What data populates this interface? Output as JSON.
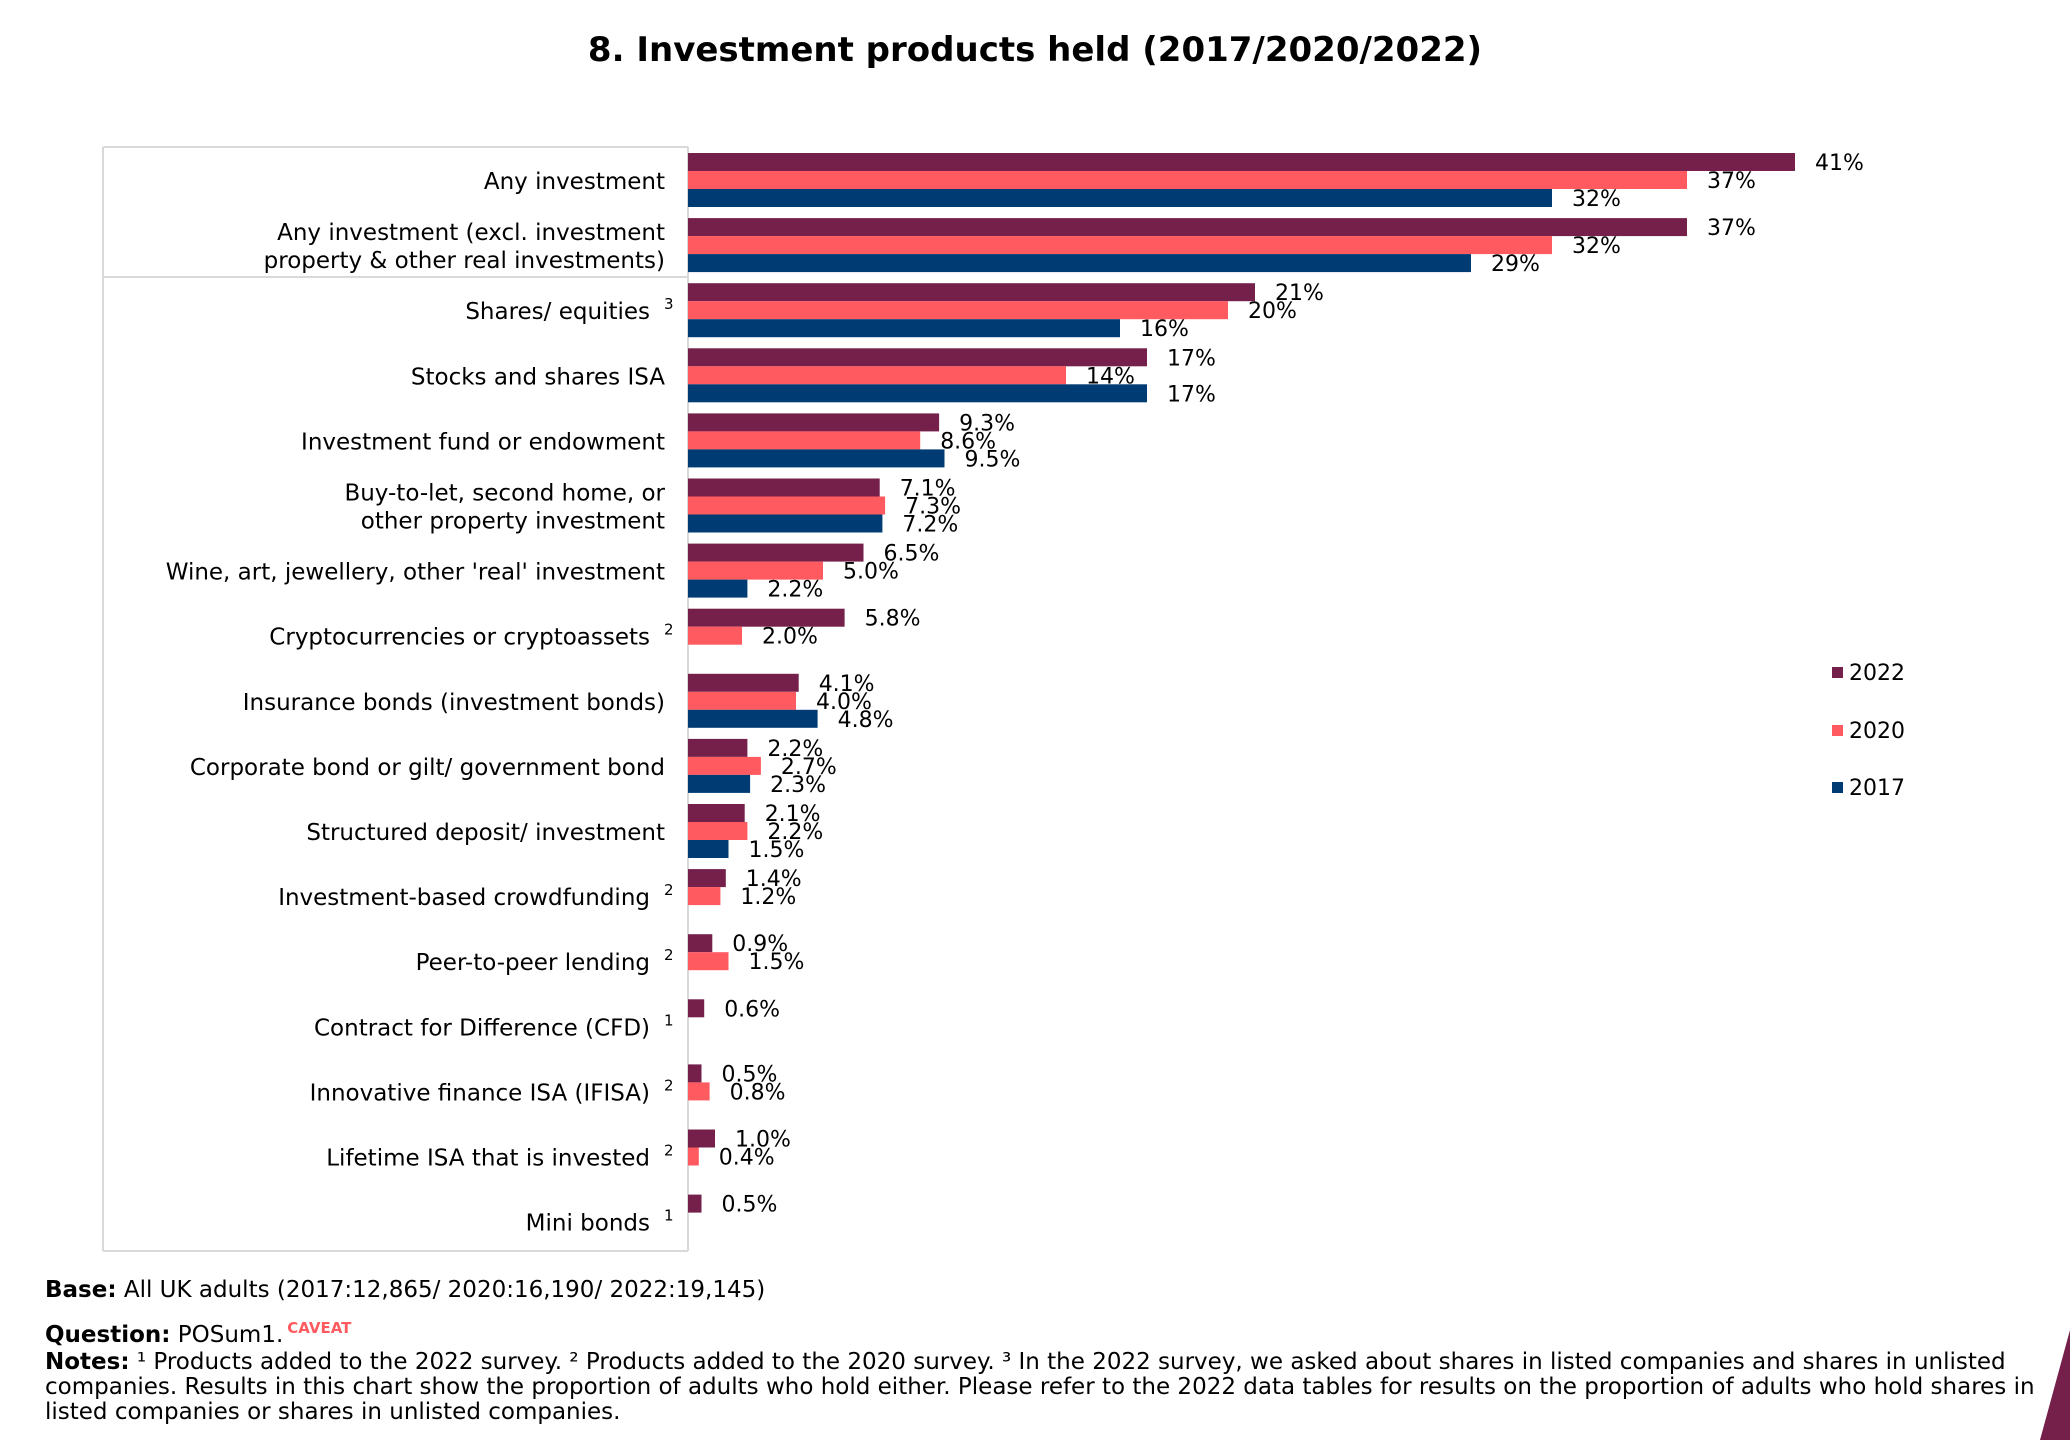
{
  "chart_data": {
    "type": "bar",
    "orientation": "horizontal",
    "title": "8. Investment products held (2017/2020/2022)",
    "categories": [
      "Any investment",
      "Any investment (excl. investment property & other real investments)",
      "Shares/ equities",
      "Stocks and shares ISA",
      "Investment fund or endowment",
      "Buy-to-let, second home, or other property investment",
      "Wine, art, jewellery, other 'real' investment",
      "Cryptocurrencies or cryptoassets",
      "Insurance bonds (investment bonds)",
      "Corporate bond or gilt/ government bond",
      "Structured deposit/ investment",
      "Investment-based crowdfunding",
      "Peer-to-peer lending",
      "Contract for Difference (CFD)",
      "Innovative finance ISA (IFISA)",
      "Lifetime ISA that is invested",
      "Mini bonds"
    ],
    "category_lines": [
      [
        "Any investment"
      ],
      [
        "Any investment (excl. investment",
        "property & other real investments)"
      ],
      [
        "Shares/ equities"
      ],
      [
        "Stocks and shares ISA"
      ],
      [
        "Investment fund or endowment"
      ],
      [
        "Buy-to-let, second home, or",
        "other property investment"
      ],
      [
        "Wine, art, jewellery, other 'real' investment"
      ],
      [
        "Cryptocurrencies or cryptoassets"
      ],
      [
        "Insurance bonds (investment bonds)"
      ],
      [
        "Corporate bond or gilt/ government bond"
      ],
      [
        "Structured deposit/ investment"
      ],
      [
        "Investment-based crowdfunding"
      ],
      [
        "Peer-to-peer lending"
      ],
      [
        "Contract for Difference (CFD)"
      ],
      [
        "Innovative finance ISA (IFISA)"
      ],
      [
        "Lifetime ISA that is invested"
      ],
      [
        "Mini bonds"
      ]
    ],
    "superscripts": [
      "",
      "",
      "3",
      "",
      "",
      "",
      "",
      "2",
      "",
      "",
      "",
      "2",
      "2",
      "1",
      "2",
      "2",
      "1"
    ],
    "series": [
      {
        "name": "2022",
        "color": "#74204a",
        "values": [
          41,
          37,
          21,
          17,
          9.3,
          7.1,
          6.5,
          5.8,
          4.1,
          2.2,
          2.1,
          1.4,
          0.9,
          0.6,
          0.5,
          1.0,
          0.5
        ],
        "labels": [
          "41%",
          "37%",
          "21%",
          "17%",
          "9.3%",
          "7.1%",
          "6.5%",
          "5.8%",
          "4.1%",
          "2.2%",
          "2.1%",
          "1.4%",
          "0.9%",
          "0.6%",
          "0.5%",
          "1.0%",
          "0.5%"
        ]
      },
      {
        "name": "2020",
        "color": "#ff5a5f",
        "values": [
          37,
          32,
          20,
          14,
          8.6,
          7.3,
          5.0,
          2.0,
          4.0,
          2.7,
          2.2,
          1.2,
          1.5,
          null,
          0.8,
          0.4,
          null
        ],
        "labels": [
          "37%",
          "32%",
          "20%",
          "14%",
          "8.6%",
          "7.3%",
          "5.0%",
          "2.0%",
          "4.0%",
          "2.7%",
          "2.2%",
          "1.2%",
          "1.5%",
          "",
          "0.8%",
          "0.4%",
          ""
        ]
      },
      {
        "name": "2017",
        "color": "#003b74",
        "values": [
          32,
          29,
          16,
          17,
          9.5,
          7.2,
          2.2,
          null,
          4.8,
          2.3,
          1.5,
          null,
          null,
          null,
          null,
          null,
          null
        ],
        "labels": [
          "32%",
          "29%",
          "16%",
          "17%",
          "9.5%",
          "7.2%",
          "2.2%",
          "",
          "4.8%",
          "2.3%",
          "1.5%",
          "",
          "",
          "",
          "",
          "",
          ""
        ]
      }
    ],
    "legend": {
      "position": "right",
      "order": [
        "2022",
        "2020",
        "2017"
      ]
    },
    "xlim": [
      0,
      45
    ],
    "grid": false
  },
  "footer": {
    "base_label": "Base:",
    "base_text": "All UK adults (2017:12,865/ 2020:16,190/ 2022:19,145)",
    "question_label": "Question:",
    "question_text": "POSum1.",
    "caveat": "CAVEAT",
    "notes_label": "Notes:",
    "notes_text": "¹ Products added to the 2022 survey. ² Products added to the 2020 survey. ³ In the 2022 survey, we asked about shares in listed companies and shares in unlisted companies. Results in this chart show the proportion of adults who hold either. Please refer to the 2022 data tables for results on the proportion of adults who hold shares in listed companies or shares in unlisted companies."
  },
  "colors": {
    "accent": "#74204a"
  }
}
